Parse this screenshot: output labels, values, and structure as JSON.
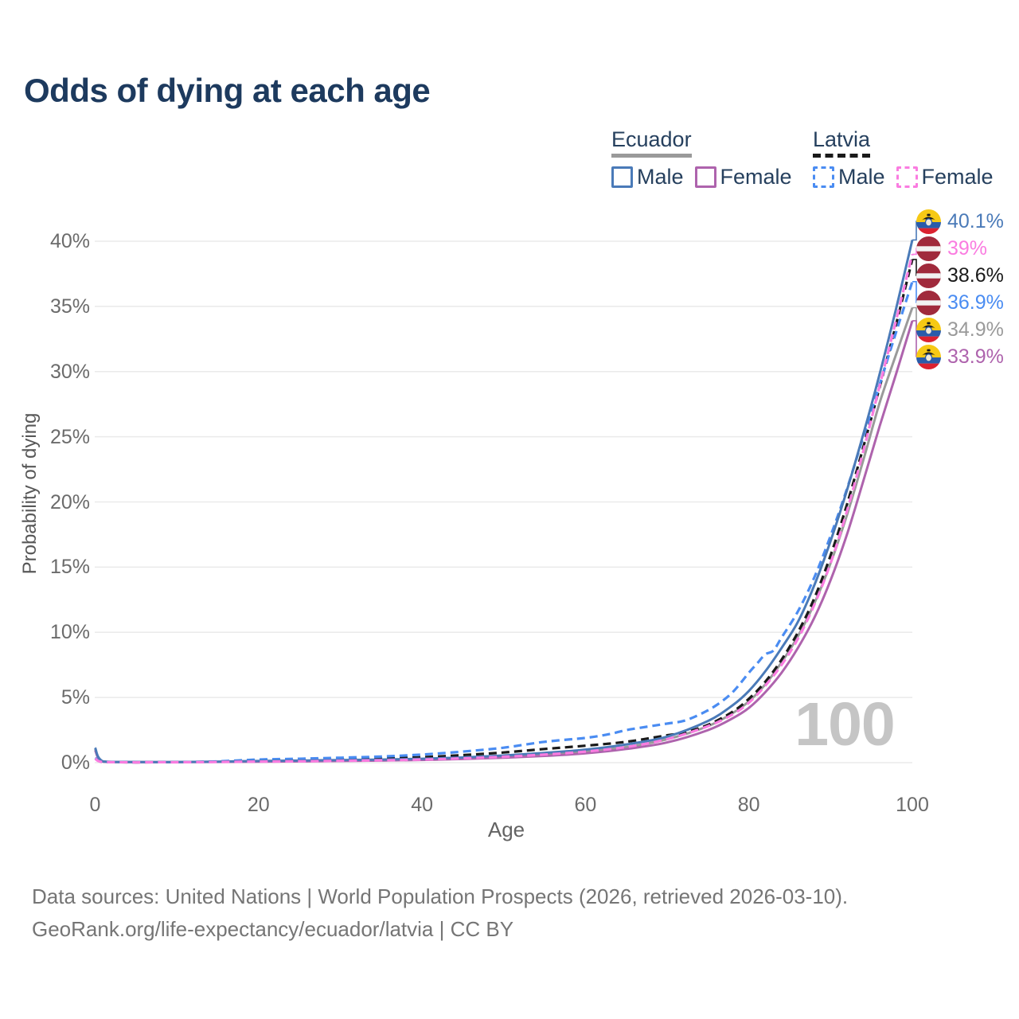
{
  "title": "Odds of dying at each age",
  "legend": {
    "groups": [
      {
        "id": "ecuador",
        "label": "Ecuador",
        "line": {
          "color": "#9a9a9a",
          "style": "solid"
        },
        "items": [
          {
            "id": "ecuador-male",
            "label": "Male",
            "color": "#4a7ab8",
            "style": "solid"
          },
          {
            "id": "ecuador-female",
            "label": "Female",
            "color": "#ae63ad",
            "style": "solid"
          }
        ]
      },
      {
        "id": "latvia",
        "label": "Latvia",
        "line": {
          "color": "#1a1a1a",
          "style": "dashed"
        },
        "items": [
          {
            "id": "latvia-male",
            "label": "Male",
            "color": "#4a8cf2",
            "style": "dashed"
          },
          {
            "id": "latvia-female",
            "label": "Female",
            "color": "#fa7ce0",
            "style": "dashed"
          }
        ]
      }
    ]
  },
  "chart_data": {
    "type": "line",
    "title": "Odds of dying at each age",
    "xlabel": "Age",
    "ylabel": "Probability of dying",
    "xlim": [
      0,
      100
    ],
    "ylim": [
      0,
      40
    ],
    "x_ticks": [
      0,
      20,
      40,
      60,
      80,
      100
    ],
    "x_tick_labels": [
      "0",
      "20",
      "40",
      "60",
      "80",
      "100"
    ],
    "y_ticks": [
      0,
      5,
      10,
      15,
      20,
      25,
      30,
      35,
      40
    ],
    "y_tick_labels": [
      "0%",
      "5%",
      "10%",
      "15%",
      "20%",
      "25%",
      "30%",
      "35%",
      "40%"
    ],
    "grid": "horizontal",
    "legend_position": "top-right",
    "watermark": "100",
    "series": [
      {
        "id": "ecuador-male",
        "name": "Ecuador Male",
        "country": "Ecuador",
        "sex": "male",
        "color": "#4a7ab8",
        "dash": "solid",
        "flag": "ecuador",
        "end_label": "40.1%",
        "end_value": 40.1,
        "points": [
          [
            0,
            1.15
          ],
          [
            1,
            0.09
          ],
          [
            5,
            0.05
          ],
          [
            10,
            0.05
          ],
          [
            15,
            0.08
          ],
          [
            20,
            0.13
          ],
          [
            25,
            0.16
          ],
          [
            30,
            0.2
          ],
          [
            35,
            0.24
          ],
          [
            40,
            0.3
          ],
          [
            45,
            0.4
          ],
          [
            50,
            0.55
          ],
          [
            55,
            0.75
          ],
          [
            60,
            1.0
          ],
          [
            65,
            1.4
          ],
          [
            70,
            2.0
          ],
          [
            75,
            3.2
          ],
          [
            78,
            4.4
          ],
          [
            80,
            5.5
          ],
          [
            82,
            7.0
          ],
          [
            84,
            8.8
          ],
          [
            86,
            10.8
          ],
          [
            88,
            13.6
          ],
          [
            90,
            17.0
          ],
          [
            92,
            20.9
          ],
          [
            94,
            25.2
          ],
          [
            96,
            29.8
          ],
          [
            98,
            34.8
          ],
          [
            100,
            40.1
          ]
        ]
      },
      {
        "id": "latvia-female",
        "name": "Latvia Female",
        "country": "Latvia",
        "sex": "female",
        "color": "#fa7ce0",
        "dash": "dashed",
        "flag": "latvia",
        "end_label": "39%",
        "end_value": 39,
        "points": [
          [
            0,
            0.3
          ],
          [
            1,
            0.035
          ],
          [
            5,
            0.02
          ],
          [
            10,
            0.03
          ],
          [
            15,
            0.05
          ],
          [
            20,
            0.08
          ],
          [
            25,
            0.1
          ],
          [
            30,
            0.14
          ],
          [
            35,
            0.18
          ],
          [
            40,
            0.24
          ],
          [
            45,
            0.33
          ],
          [
            50,
            0.45
          ],
          [
            55,
            0.62
          ],
          [
            60,
            0.85
          ],
          [
            65,
            1.2
          ],
          [
            70,
            1.8
          ],
          [
            75,
            2.8
          ],
          [
            78,
            3.7
          ],
          [
            80,
            4.6
          ],
          [
            82,
            5.9
          ],
          [
            84,
            7.5
          ],
          [
            86,
            9.5
          ],
          [
            88,
            12.1
          ],
          [
            90,
            15.3
          ],
          [
            92,
            19.3
          ],
          [
            94,
            23.9
          ],
          [
            96,
            28.9
          ],
          [
            98,
            33.9
          ],
          [
            100,
            39.0
          ]
        ]
      },
      {
        "id": "latvia-both",
        "name": "Latvia",
        "country": "Latvia",
        "sex": "both",
        "color": "#1a1a1a",
        "dash": "dashed",
        "flag": "latvia",
        "end_label": "38.6%",
        "end_value": 38.6,
        "points": [
          [
            0,
            0.33
          ],
          [
            1,
            0.04
          ],
          [
            5,
            0.025
          ],
          [
            10,
            0.035
          ],
          [
            15,
            0.08
          ],
          [
            20,
            0.16
          ],
          [
            25,
            0.2
          ],
          [
            30,
            0.26
          ],
          [
            35,
            0.32
          ],
          [
            40,
            0.42
          ],
          [
            45,
            0.58
          ],
          [
            50,
            0.78
          ],
          [
            55,
            1.05
          ],
          [
            60,
            1.3
          ],
          [
            65,
            1.6
          ],
          [
            70,
            2.1
          ],
          [
            72,
            2.3
          ],
          [
            75,
            2.9
          ],
          [
            78,
            3.9
          ],
          [
            80,
            4.9
          ],
          [
            82,
            6.2
          ],
          [
            84,
            7.9
          ],
          [
            86,
            10.0
          ],
          [
            88,
            12.6
          ],
          [
            90,
            15.9
          ],
          [
            92,
            19.8
          ],
          [
            94,
            24.2
          ],
          [
            96,
            28.8
          ],
          [
            98,
            33.6
          ],
          [
            100,
            38.6
          ]
        ]
      },
      {
        "id": "latvia-male",
        "name": "Latvia Male",
        "country": "Latvia",
        "sex": "male",
        "color": "#4a8cf2",
        "dash": "dashed",
        "flag": "latvia",
        "end_label": "36.9%",
        "end_value": 36.9,
        "points": [
          [
            0,
            0.35
          ],
          [
            1,
            0.045
          ],
          [
            5,
            0.03
          ],
          [
            10,
            0.04
          ],
          [
            15,
            0.1
          ],
          [
            20,
            0.24
          ],
          [
            25,
            0.3
          ],
          [
            30,
            0.38
          ],
          [
            35,
            0.47
          ],
          [
            40,
            0.62
          ],
          [
            45,
            0.85
          ],
          [
            50,
            1.15
          ],
          [
            55,
            1.6
          ],
          [
            60,
            1.9
          ],
          [
            63,
            2.2
          ],
          [
            65,
            2.5
          ],
          [
            68,
            2.8
          ],
          [
            70,
            3.0
          ],
          [
            72,
            3.2
          ],
          [
            74,
            3.7
          ],
          [
            76,
            4.4
          ],
          [
            78,
            5.4
          ],
          [
            80,
            6.9
          ],
          [
            81,
            7.6
          ],
          [
            82,
            8.3
          ],
          [
            83,
            8.6
          ],
          [
            84,
            9.6
          ],
          [
            86,
            11.6
          ],
          [
            88,
            14.2
          ],
          [
            90,
            17.4
          ],
          [
            92,
            21.0
          ],
          [
            94,
            25.0
          ],
          [
            96,
            29.0
          ],
          [
            98,
            33.0
          ],
          [
            100,
            36.9
          ]
        ]
      },
      {
        "id": "ecuador-both",
        "name": "Ecuador",
        "country": "Ecuador",
        "sex": "both",
        "color": "#9a9a9a",
        "dash": "solid",
        "flag": "ecuador",
        "end_label": "34.9%",
        "end_value": 34.9,
        "points": [
          [
            0,
            1.05
          ],
          [
            1,
            0.08
          ],
          [
            5,
            0.045
          ],
          [
            10,
            0.045
          ],
          [
            15,
            0.07
          ],
          [
            20,
            0.1
          ],
          [
            25,
            0.13
          ],
          [
            30,
            0.16
          ],
          [
            35,
            0.2
          ],
          [
            40,
            0.25
          ],
          [
            45,
            0.34
          ],
          [
            50,
            0.46
          ],
          [
            55,
            0.62
          ],
          [
            60,
            0.85
          ],
          [
            65,
            1.2
          ],
          [
            70,
            1.8
          ],
          [
            75,
            2.8
          ],
          [
            78,
            3.8
          ],
          [
            80,
            4.7
          ],
          [
            82,
            6.0
          ],
          [
            84,
            7.7
          ],
          [
            86,
            9.7
          ],
          [
            88,
            12.2
          ],
          [
            90,
            15.3
          ],
          [
            92,
            19.0
          ],
          [
            94,
            23.2
          ],
          [
            96,
            27.6
          ],
          [
            98,
            31.3
          ],
          [
            100,
            34.9
          ]
        ]
      },
      {
        "id": "ecuador-female",
        "name": "Ecuador Female",
        "country": "Ecuador",
        "sex": "female",
        "color": "#ae63ad",
        "dash": "solid",
        "flag": "ecuador",
        "end_label": "33.9%",
        "end_value": 33.9,
        "points": [
          [
            0,
            0.95
          ],
          [
            1,
            0.075
          ],
          [
            5,
            0.04
          ],
          [
            10,
            0.04
          ],
          [
            15,
            0.06
          ],
          [
            20,
            0.08
          ],
          [
            25,
            0.1
          ],
          [
            30,
            0.13
          ],
          [
            35,
            0.16
          ],
          [
            40,
            0.21
          ],
          [
            45,
            0.28
          ],
          [
            50,
            0.38
          ],
          [
            55,
            0.52
          ],
          [
            60,
            0.72
          ],
          [
            65,
            1.05
          ],
          [
            70,
            1.55
          ],
          [
            75,
            2.5
          ],
          [
            78,
            3.4
          ],
          [
            80,
            4.2
          ],
          [
            82,
            5.4
          ],
          [
            84,
            6.9
          ],
          [
            86,
            8.8
          ],
          [
            88,
            11.1
          ],
          [
            90,
            14.0
          ],
          [
            92,
            17.5
          ],
          [
            94,
            21.6
          ],
          [
            96,
            25.8
          ],
          [
            98,
            29.8
          ],
          [
            100,
            33.9
          ]
        ]
      }
    ]
  },
  "footer": {
    "line1": "Data sources: United Nations | World Population Prospects (2026, retrieved 2026-03-10).",
    "line2": "GeoRank.org/life-expectancy/ecuador/latvia | CC BY"
  },
  "icons": {
    "ecuador_flag": {
      "yellow": "#F6C915",
      "blue": "#2A5CAA",
      "red": "#DB2230",
      "emblem": "#1a1a1a"
    },
    "latvia_flag": {
      "red": "#A02A3C",
      "white": "#F2F2F2"
    }
  }
}
